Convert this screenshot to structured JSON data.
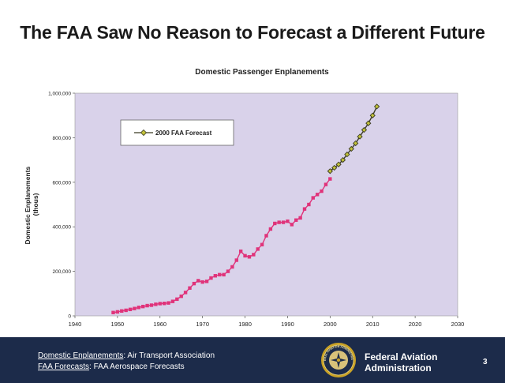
{
  "slide": {
    "title": "The FAA Saw No Reason to Forecast a Different Future",
    "page_number": "3"
  },
  "footer": {
    "source1_label": "Domestic Enplanements",
    "source1_text": ": Air Transport Association",
    "source2_label": "FAA Forecasts",
    "source2_text": ": FAA Aerospace Forecasts",
    "agency_line1": "Federal Aviation",
    "agency_line2": "Administration",
    "seal_text": "FEDERAL AVIATION ADMINISTRATION"
  },
  "colors": {
    "plot_bg": "#d9d2ea",
    "historical": "#e0337a",
    "forecast": "#3b3b22",
    "forecast_marker": "#c2c23a",
    "footer_bg": "#1c2b4a"
  },
  "chart_data": {
    "type": "line",
    "title": "Domestic Passenger Enplanements",
    "xlabel": "",
    "ylabel": "Domestic Enplanements (thous)",
    "xlim": [
      1940,
      2030
    ],
    "ylim": [
      0,
      1000000
    ],
    "xticks": [
      1940,
      1950,
      1960,
      1970,
      1980,
      1990,
      2000,
      2010,
      2020,
      2030
    ],
    "yticks": [
      0,
      200000,
      400000,
      600000,
      800000,
      1000000
    ],
    "ytick_labels": [
      "0",
      "200,000",
      "400,000",
      "600,000",
      "800,000",
      "1,000,000"
    ],
    "legend": {
      "position": "top-left"
    },
    "series": [
      {
        "name": "Domestic Enplanements",
        "in_legend": false,
        "marker": "square",
        "x": [
          1949,
          1950,
          1951,
          1952,
          1953,
          1954,
          1955,
          1956,
          1957,
          1958,
          1959,
          1960,
          1961,
          1962,
          1963,
          1964,
          1965,
          1966,
          1967,
          1968,
          1969,
          1970,
          1971,
          1972,
          1973,
          1974,
          1975,
          1976,
          1977,
          1978,
          1979,
          1980,
          1981,
          1982,
          1983,
          1984,
          1985,
          1986,
          1987,
          1988,
          1989,
          1990,
          1991,
          1992,
          1993,
          1994,
          1995,
          1996,
          1997,
          1998,
          1999,
          2000
        ],
        "values": [
          15000,
          18000,
          22000,
          25000,
          29000,
          33000,
          38000,
          42000,
          46000,
          48000,
          52000,
          55000,
          56000,
          58000,
          65000,
          75000,
          88000,
          105000,
          125000,
          145000,
          158000,
          152000,
          155000,
          170000,
          180000,
          185000,
          185000,
          200000,
          220000,
          250000,
          290000,
          270000,
          265000,
          275000,
          300000,
          320000,
          360000,
          390000,
          415000,
          420000,
          420000,
          425000,
          410000,
          430000,
          440000,
          480000,
          500000,
          530000,
          545000,
          560000,
          590000,
          615000
        ]
      },
      {
        "name": "2000 FAA Forecast",
        "in_legend": true,
        "marker": "diamond",
        "x": [
          2000,
          2001,
          2002,
          2003,
          2004,
          2005,
          2006,
          2007,
          2008,
          2009,
          2010,
          2011
        ],
        "values": [
          650000,
          665000,
          680000,
          700000,
          725000,
          750000,
          775000,
          805000,
          835000,
          865000,
          900000,
          940000
        ]
      }
    ]
  }
}
